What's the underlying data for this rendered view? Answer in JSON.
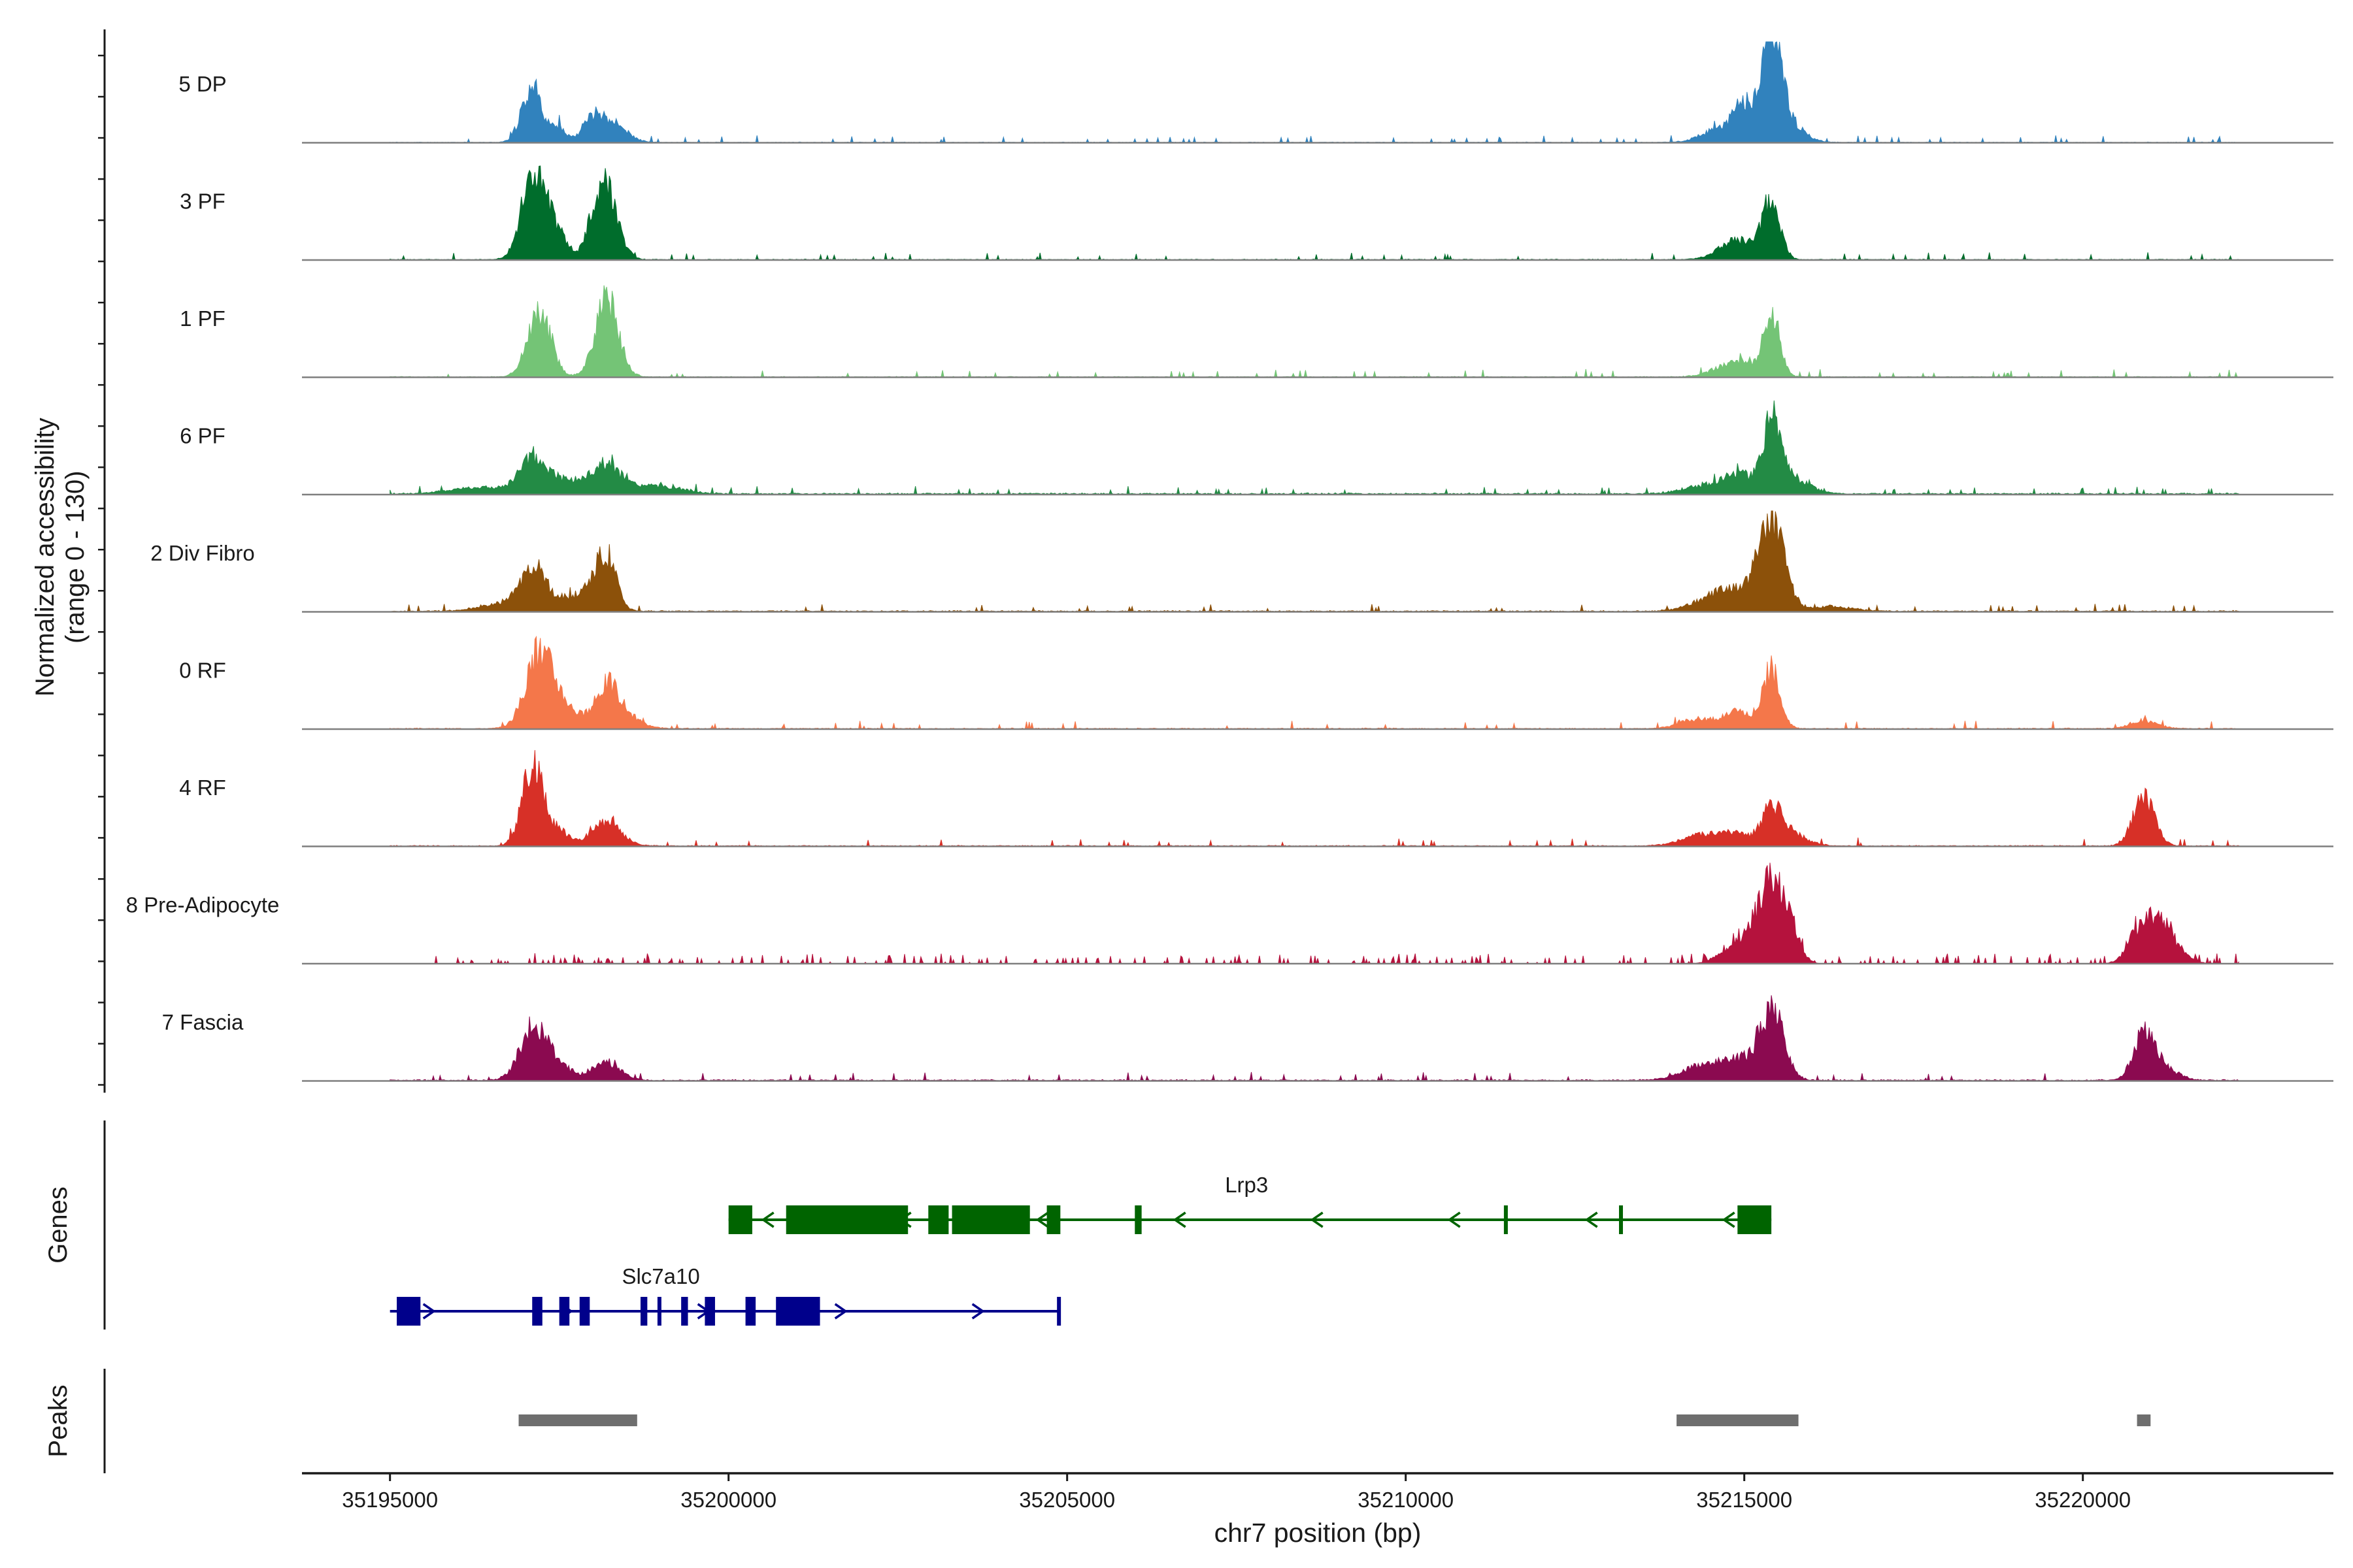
{
  "chart_data": {
    "type": "area",
    "title": "",
    "ylabel": "Normalized accessibility\n(range 0 - 130)",
    "ylim": [
      0,
      130
    ],
    "xlabel": "chr7 position (bp)",
    "xlim": [
      35193700,
      35223700
    ],
    "x_ticks": [
      35195000,
      35200000,
      35205000,
      35210000,
      35215000,
      35220000
    ],
    "x_tick_labels": [
      "35195000",
      "35200000",
      "35205000",
      "35210000",
      "35215000",
      "35220000"
    ],
    "tracks": [
      {
        "name": "5 DP",
        "color": "#3182bd",
        "baseline": 0.6,
        "noise_seed": 11,
        "peaks": [
          [
            35197100,
            72,
            150
          ],
          [
            35197500,
            18,
            100
          ],
          [
            35198000,
            30,
            160
          ],
          [
            35198300,
            22,
            200
          ],
          [
            35214700,
            20,
            280
          ],
          [
            35215000,
            35,
            140
          ],
          [
            35215400,
            115,
            130
          ],
          [
            35215500,
            40,
            260
          ]
        ]
      },
      {
        "name": "3 PF",
        "color": "#006d2c",
        "baseline": 0.8,
        "noise_seed": 23,
        "peaks": [
          [
            35197100,
            100,
            170
          ],
          [
            35197400,
            40,
            180
          ],
          [
            35198200,
            85,
            170
          ],
          [
            35198050,
            30,
            140
          ],
          [
            35214900,
            25,
            260
          ],
          [
            35215400,
            70,
            130
          ]
        ]
      },
      {
        "name": "1 PF",
        "color": "#74c476",
        "baseline": 0.7,
        "noise_seed": 37,
        "peaks": [
          [
            35197200,
            85,
            170
          ],
          [
            35198200,
            100,
            170
          ],
          [
            35214700,
            12,
            230
          ],
          [
            35215000,
            15,
            170
          ],
          [
            35215400,
            85,
            120
          ]
        ]
      },
      {
        "name": "6 PF",
        "color": "#238b45",
        "baseline": 1.4,
        "noise_seed": 41,
        "peaks": [
          [
            35196300,
            8,
            400
          ],
          [
            35197100,
            40,
            200
          ],
          [
            35197600,
            18,
            280
          ],
          [
            35198200,
            35,
            200
          ],
          [
            35198900,
            10,
            400
          ],
          [
            35214400,
            10,
            300
          ],
          [
            35214900,
            25,
            200
          ],
          [
            35215400,
            92,
            130
          ],
          [
            35215700,
            20,
            250
          ]
        ]
      },
      {
        "name": "2 Div Fibro",
        "color": "#8c510a",
        "baseline": 1.1,
        "noise_seed": 53,
        "peaks": [
          [
            35196700,
            10,
            350
          ],
          [
            35197100,
            50,
            170
          ],
          [
            35197500,
            15,
            250
          ],
          [
            35198000,
            25,
            200
          ],
          [
            35198200,
            60,
            140
          ],
          [
            35214500,
            15,
            300
          ],
          [
            35214900,
            20,
            260
          ],
          [
            35215400,
            115,
            190
          ],
          [
            35216300,
            6,
            300
          ]
        ]
      },
      {
        "name": "0 RF",
        "color": "#f4774a",
        "baseline": 0.9,
        "noise_seed": 67,
        "peaks": [
          [
            35197200,
            82,
            200
          ],
          [
            35197500,
            30,
            280
          ],
          [
            35198200,
            50,
            160
          ],
          [
            35198450,
            18,
            220
          ],
          [
            35214300,
            12,
            250
          ],
          [
            35214900,
            22,
            200
          ],
          [
            35215400,
            75,
            130
          ],
          [
            35220900,
            10,
            200
          ]
        ]
      },
      {
        "name": "4 RF",
        "color": "#d73027",
        "baseline": 0.9,
        "noise_seed": 79,
        "peaks": [
          [
            35197100,
            100,
            150
          ],
          [
            35197450,
            20,
            200
          ],
          [
            35198200,
            30,
            210
          ],
          [
            35214400,
            15,
            300
          ],
          [
            35214900,
            12,
            200
          ],
          [
            35215400,
            45,
            150
          ],
          [
            35215700,
            15,
            220
          ],
          [
            35220900,
            60,
            160
          ]
        ]
      },
      {
        "name": "8 Pre-Adipocyte",
        "color": "#b5123d",
        "baseline": 0.0,
        "noise_seed": 97,
        "peaks": [
          [
            35215400,
            110,
            150
          ],
          [
            35215100,
            35,
            150
          ],
          [
            35215700,
            45,
            130
          ],
          [
            35214800,
            18,
            200
          ],
          [
            35221100,
            55,
            250
          ],
          [
            35220800,
            20,
            150
          ]
        ]
      },
      {
        "name": "7 Fascia",
        "color": "#8b0a50",
        "baseline": 1.2,
        "noise_seed": 103,
        "peaks": [
          [
            35197100,
            60,
            190
          ],
          [
            35197400,
            20,
            260
          ],
          [
            35198200,
            22,
            200
          ],
          [
            35214400,
            20,
            300
          ],
          [
            35214900,
            22,
            200
          ],
          [
            35215400,
            90,
            180
          ],
          [
            35220900,
            60,
            150
          ],
          [
            35221200,
            15,
            200
          ]
        ]
      }
    ],
    "genes": [
      {
        "name": "Lrp3",
        "strand": "-",
        "color": "#006400",
        "start": 35200000,
        "end": 35215400,
        "exons": [
          [
            35200000,
            35200350
          ],
          [
            35200850,
            35202650
          ],
          [
            35202950,
            35203250
          ],
          [
            35203300,
            35204450
          ],
          [
            35204700,
            35204900
          ],
          [
            35206000,
            35206100
          ],
          [
            35211450,
            35211460
          ],
          [
            35213150,
            35213160
          ],
          [
            35214900,
            35215400
          ]
        ]
      },
      {
        "name": "Slc7a10",
        "strand": "+",
        "color": "#00008b",
        "start": 35195000,
        "end": 35204900,
        "exons": [
          [
            35195100,
            35195450
          ],
          [
            35197100,
            35197250
          ],
          [
            35197500,
            35197650
          ],
          [
            35197800,
            35197950
          ],
          [
            35198700,
            35198800
          ],
          [
            35198950,
            35199000
          ],
          [
            35199300,
            35199400
          ],
          [
            35199650,
            35199800
          ],
          [
            35200250,
            35200400
          ],
          [
            35200700,
            35201350
          ],
          [
            35204850,
            35204900
          ]
        ]
      }
    ],
    "genes_label": "Genes",
    "peaks_label": "Peaks",
    "peak_regions": [
      [
        35196900,
        35198650
      ],
      [
        35214000,
        35215800
      ],
      [
        35220800,
        35221000
      ]
    ]
  }
}
